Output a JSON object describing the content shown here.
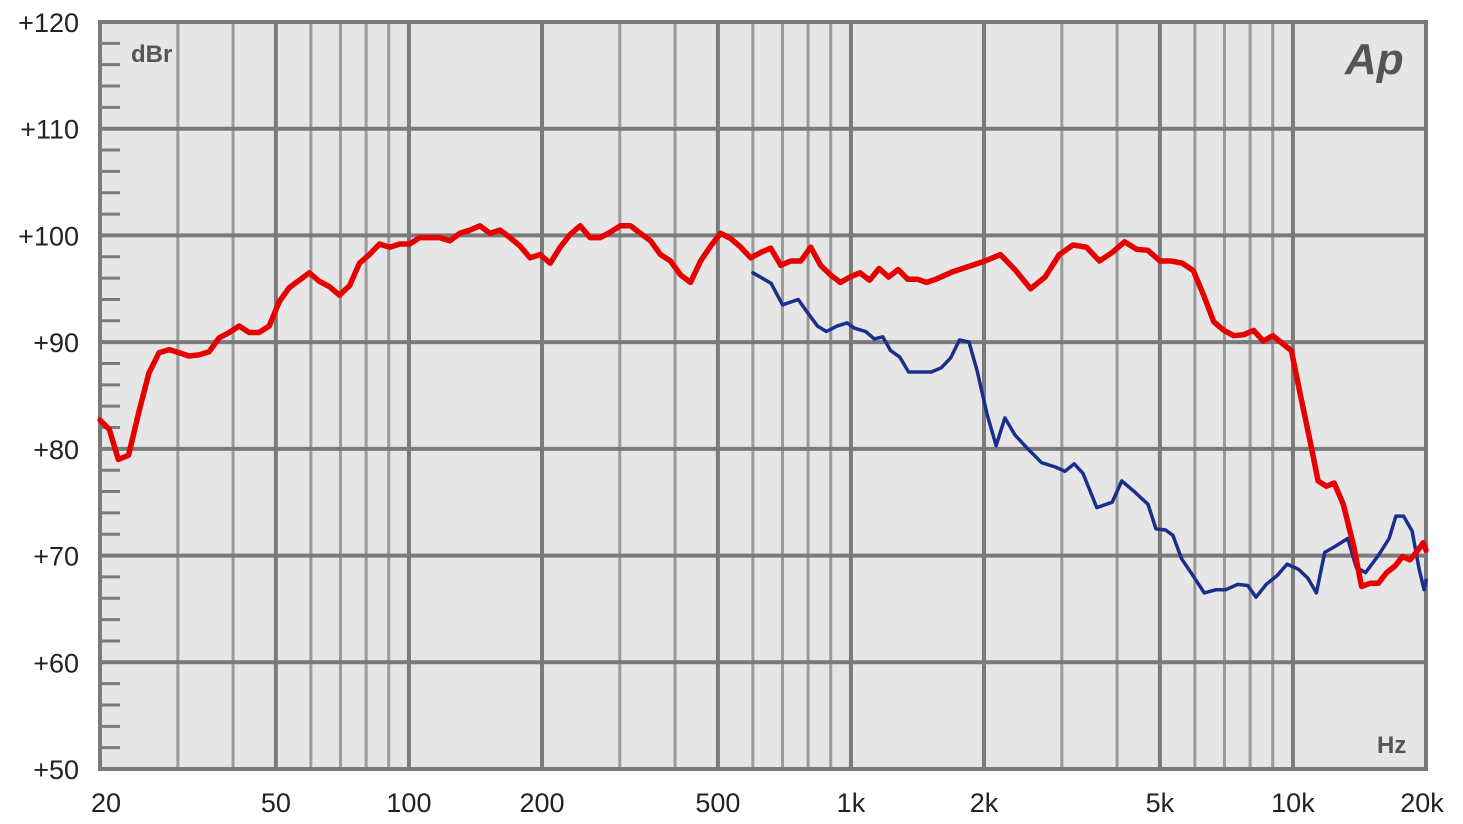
{
  "chart_data": {
    "type": "line",
    "title": "",
    "xlabel": "Hz",
    "ylabel": "dBr",
    "x_scale": "log",
    "xlim": [
      20,
      20000
    ],
    "ylim": [
      50,
      120
    ],
    "grid": true,
    "logo": "Ap",
    "x_ticks": [
      {
        "value": 20,
        "label": "20"
      },
      {
        "value": 50,
        "label": "50"
      },
      {
        "value": 100,
        "label": "100"
      },
      {
        "value": 200,
        "label": "200"
      },
      {
        "value": 500,
        "label": "500"
      },
      {
        "value": 1000,
        "label": "1k"
      },
      {
        "value": 2000,
        "label": "2k"
      },
      {
        "value": 5000,
        "label": "5k"
      },
      {
        "value": 10000,
        "label": "10k"
      },
      {
        "value": 20000,
        "label": "20k"
      }
    ],
    "y_ticks": [
      {
        "value": 120,
        "label": "+120"
      },
      {
        "value": 110,
        "label": "+110"
      },
      {
        "value": 100,
        "label": "+100"
      },
      {
        "value": 90,
        "label": "+90"
      },
      {
        "value": 80,
        "label": "+80"
      },
      {
        "value": 70,
        "label": "+70"
      },
      {
        "value": 60,
        "label": "+60"
      },
      {
        "value": 50,
        "label": "+50"
      }
    ],
    "colors": {
      "grid_bg": "#e6e6e6",
      "grid_major": "#7a7a7a",
      "grid_minor": "#9a9a9a"
    },
    "series": [
      {
        "color": "#1a2f8c",
        "points": [
          [
            600,
            96.5
          ],
          [
            660,
            95.5
          ],
          [
            700,
            93.5
          ],
          [
            760,
            94.0
          ],
          [
            790,
            93.0
          ],
          [
            840,
            91.5
          ],
          [
            880,
            91.0
          ],
          [
            930,
            91.5
          ],
          [
            980,
            91.8
          ],
          [
            1020,
            91.3
          ],
          [
            1080,
            91.0
          ],
          [
            1130,
            90.3
          ],
          [
            1180,
            90.5
          ],
          [
            1230,
            89.2
          ],
          [
            1290,
            88.6
          ],
          [
            1350,
            87.2
          ],
          [
            1430,
            87.2
          ],
          [
            1520,
            87.2
          ],
          [
            1600,
            87.6
          ],
          [
            1680,
            88.5
          ],
          [
            1760,
            90.2
          ],
          [
            1850,
            90.0
          ],
          [
            1930,
            87.3
          ],
          [
            2030,
            83.3
          ],
          [
            2130,
            80.3
          ],
          [
            2230,
            82.9
          ],
          [
            2350,
            81.3
          ],
          [
            2500,
            80.1
          ],
          [
            2700,
            78.7
          ],
          [
            2900,
            78.3
          ],
          [
            3050,
            77.9
          ],
          [
            3200,
            78.6
          ],
          [
            3350,
            77.7
          ],
          [
            3600,
            74.5
          ],
          [
            3900,
            75.0
          ],
          [
            4100,
            77.0
          ],
          [
            4400,
            75.9
          ],
          [
            4700,
            74.8
          ],
          [
            4900,
            72.5
          ],
          [
            5150,
            72.4
          ],
          [
            5350,
            71.9
          ],
          [
            5600,
            69.7
          ],
          [
            5900,
            68.3
          ],
          [
            6300,
            66.5
          ],
          [
            6700,
            66.8
          ],
          [
            7050,
            66.8
          ],
          [
            7500,
            67.3
          ],
          [
            7900,
            67.2
          ],
          [
            8250,
            66.1
          ],
          [
            8700,
            67.3
          ],
          [
            9200,
            68.1
          ],
          [
            9700,
            69.2
          ],
          [
            10300,
            68.7
          ],
          [
            10800,
            67.9
          ],
          [
            11300,
            66.5
          ],
          [
            11800,
            70.3
          ],
          [
            12500,
            70.9
          ],
          [
            13300,
            71.6
          ],
          [
            13900,
            68.9
          ],
          [
            14600,
            68.4
          ],
          [
            15600,
            70.0
          ],
          [
            16500,
            71.6
          ],
          [
            17100,
            73.7
          ],
          [
            17800,
            73.7
          ],
          [
            18600,
            72.3
          ],
          [
            19300,
            68.7
          ],
          [
            19800,
            66.8
          ],
          [
            20000,
            67.7
          ]
        ]
      },
      {
        "color": "#e60000",
        "points": [
          [
            20,
            82.7
          ],
          [
            21,
            81.8
          ],
          [
            22,
            79.0
          ],
          [
            23.2,
            79.4
          ],
          [
            24.5,
            83.5
          ],
          [
            25.8,
            87.1
          ],
          [
            27.2,
            89.0
          ],
          [
            28.7,
            89.3
          ],
          [
            30.2,
            89.0
          ],
          [
            31.8,
            88.7
          ],
          [
            33.5,
            88.8
          ],
          [
            35.3,
            89.1
          ],
          [
            37.2,
            90.4
          ],
          [
            39.2,
            90.9
          ],
          [
            41.3,
            91.5
          ],
          [
            43.5,
            90.9
          ],
          [
            45.8,
            90.9
          ],
          [
            48.3,
            91.5
          ],
          [
            50.9,
            93.8
          ],
          [
            53.6,
            95.1
          ],
          [
            56.5,
            95.8
          ],
          [
            59.5,
            96.5
          ],
          [
            62.7,
            95.7
          ],
          [
            66.1,
            95.2
          ],
          [
            69.6,
            94.4
          ],
          [
            73.4,
            95.3
          ],
          [
            77.3,
            97.4
          ],
          [
            81.4,
            98.2
          ],
          [
            85.8,
            99.2
          ],
          [
            90.4,
            98.9
          ],
          [
            95.3,
            99.2
          ],
          [
            100.4,
            99.2
          ],
          [
            105.8,
            99.8
          ],
          [
            111.5,
            99.8
          ],
          [
            117.4,
            99.8
          ],
          [
            123.7,
            99.5
          ],
          [
            130.4,
            100.2
          ],
          [
            137.4,
            100.5
          ],
          [
            144.7,
            100.9
          ],
          [
            152.5,
            100.2
          ],
          [
            160.7,
            100.5
          ],
          [
            169.3,
            99.8
          ],
          [
            178.4,
            99.0
          ],
          [
            188,
            97.9
          ],
          [
            198,
            98.2
          ],
          [
            208.7,
            97.4
          ],
          [
            219.9,
            98.9
          ],
          [
            231.7,
            100.1
          ],
          [
            244,
            100.9
          ],
          [
            257,
            99.8
          ],
          [
            271,
            99.8
          ],
          [
            285.5,
            100.3
          ],
          [
            300.8,
            100.9
          ],
          [
            317,
            100.9
          ],
          [
            334,
            100.2
          ],
          [
            351.9,
            99.5
          ],
          [
            370.7,
            98.2
          ],
          [
            390.6,
            97.6
          ],
          [
            411.6,
            96.3
          ],
          [
            433.6,
            95.6
          ],
          [
            456.9,
            97.6
          ],
          [
            481.4,
            99.0
          ],
          [
            507.2,
            100.2
          ],
          [
            534.4,
            99.7
          ],
          [
            563,
            98.9
          ],
          [
            593.2,
            97.9
          ],
          [
            625,
            98.4
          ],
          [
            658.5,
            98.8
          ],
          [
            693.8,
            97.2
          ],
          [
            731,
            97.6
          ],
          [
            770,
            97.6
          ],
          [
            811,
            98.9
          ],
          [
            854,
            97.2
          ],
          [
            899,
            96.3
          ],
          [
            946,
            95.6
          ],
          [
            996,
            96.1
          ],
          [
            1048,
            96.5
          ],
          [
            1102,
            95.8
          ],
          [
            1158,
            96.9
          ],
          [
            1217,
            96.1
          ],
          [
            1279,
            96.8
          ],
          [
            1344,
            95.9
          ],
          [
            1412,
            95.9
          ],
          [
            1483,
            95.6
          ],
          [
            1557,
            95.9
          ],
          [
            1700,
            96.6
          ],
          [
            1850,
            97.1
          ],
          [
            2010,
            97.6
          ],
          [
            2180,
            98.2
          ],
          [
            2360,
            96.7
          ],
          [
            2550,
            95.0
          ],
          [
            2750,
            96.1
          ],
          [
            2960,
            98.2
          ],
          [
            3180,
            99.1
          ],
          [
            3410,
            98.9
          ],
          [
            3650,
            97.6
          ],
          [
            3900,
            98.4
          ],
          [
            4160,
            99.4
          ],
          [
            4430,
            98.7
          ],
          [
            4700,
            98.6
          ],
          [
            5000,
            97.6
          ],
          [
            5300,
            97.6
          ],
          [
            5620,
            97.4
          ],
          [
            5950,
            96.7
          ],
          [
            6280,
            94.4
          ],
          [
            6620,
            91.9
          ],
          [
            6980,
            91.1
          ],
          [
            7350,
            90.6
          ],
          [
            7740,
            90.7
          ],
          [
            8150,
            91.1
          ],
          [
            8570,
            90.1
          ],
          [
            9000,
            90.6
          ],
          [
            9450,
            89.9
          ],
          [
            9920,
            89.2
          ],
          [
            10400,
            85.0
          ],
          [
            10900,
            81.0
          ],
          [
            11400,
            77.0
          ],
          [
            11900,
            76.5
          ],
          [
            12400,
            76.8
          ],
          [
            13000,
            74.8
          ],
          [
            13700,
            71.0
          ],
          [
            14300,
            67.1
          ],
          [
            14950,
            67.4
          ],
          [
            15600,
            67.4
          ],
          [
            16300,
            68.4
          ],
          [
            17000,
            69.0
          ],
          [
            17700,
            69.9
          ],
          [
            18400,
            69.6
          ],
          [
            19100,
            70.4
          ],
          [
            19700,
            71.2
          ],
          [
            20000,
            70.5
          ]
        ]
      }
    ]
  }
}
